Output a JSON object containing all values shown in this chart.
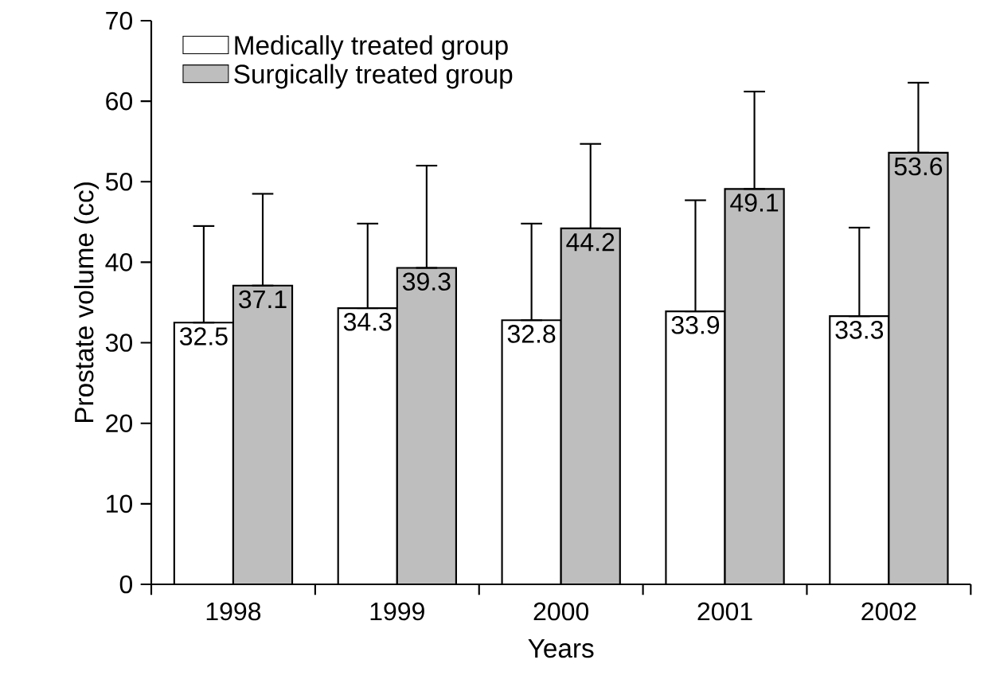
{
  "chart_data": {
    "type": "bar",
    "xlabel": "Years",
    "ylabel": "Prostate volume (cc)",
    "categories": [
      "1998",
      "1999",
      "2000",
      "2001",
      "2002"
    ],
    "series": [
      {
        "name": "Medically treated group",
        "color": "#ffffff",
        "values": [
          32.5,
          34.3,
          32.8,
          33.9,
          33.3
        ],
        "errors": [
          [
            32.5,
            44.5
          ],
          [
            34.3,
            44.8
          ],
          [
            32.8,
            44.8
          ],
          [
            33.9,
            47.7
          ],
          [
            33.3,
            44.3
          ]
        ]
      },
      {
        "name": "Surgically treated group",
        "color": "#bebebe",
        "values": [
          37.1,
          39.3,
          44.2,
          49.1,
          53.6
        ],
        "errors": [
          [
            37.1,
            48.5
          ],
          [
            39.3,
            52.0
          ],
          [
            44.2,
            54.7
          ],
          [
            49.1,
            61.2
          ],
          [
            53.6,
            62.3
          ]
        ]
      }
    ],
    "ylim": [
      0,
      70
    ],
    "yticks": [
      0,
      10,
      20,
      30,
      40,
      50,
      60,
      70
    ],
    "data_labels": true,
    "legend": "top left",
    "grid": false
  }
}
